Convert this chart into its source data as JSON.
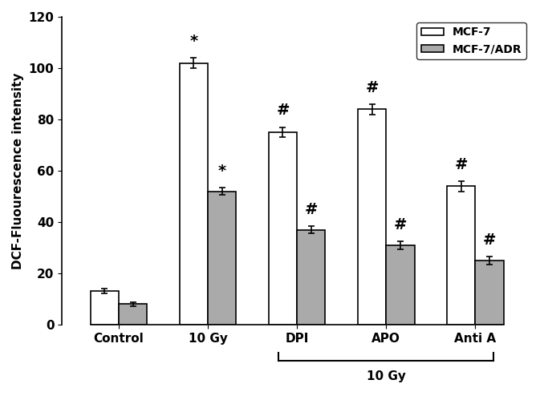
{
  "groups": [
    "Control",
    "10 Gy",
    "DPI",
    "APO",
    "Anti A"
  ],
  "mcf7_values": [
    13,
    102,
    75,
    84,
    54
  ],
  "mcf7_errors": [
    1.0,
    2.0,
    2.0,
    2.0,
    2.0
  ],
  "adr_values": [
    8,
    52,
    37,
    31,
    25
  ],
  "adr_errors": [
    0.8,
    1.5,
    1.5,
    1.5,
    1.5
  ],
  "mcf7_color": "#ffffff",
  "adr_color": "#aaaaaa",
  "bar_edgecolor": "#000000",
  "ylabel": "DCF-Fluourescence intensity",
  "ylim": [
    0,
    120
  ],
  "yticks": [
    0,
    20,
    40,
    60,
    80,
    100,
    120
  ],
  "legend_labels": [
    "MCF-7",
    "MCF-7/ADR"
  ],
  "annotation_mcf7": [
    "",
    "*",
    "#",
    "#",
    "#"
  ],
  "annotation_adr": [
    "",
    "*",
    "#",
    "#",
    "#"
  ],
  "bracket_label": "10 Gy",
  "background_color": "#ffffff",
  "bar_width": 0.35,
  "group_positions": [
    0,
    1.1,
    2.2,
    3.3,
    4.4
  ]
}
